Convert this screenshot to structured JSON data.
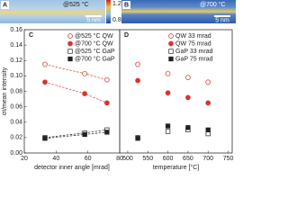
{
  "images": [
    {
      "label": "A",
      "temperature": "@525 °C",
      "scale": "5 nm"
    },
    {
      "label": "B",
      "temperature": "@700 °C",
      "scale": "5 nm"
    }
  ],
  "colorbar": {
    "top": "1.2",
    "bottom": "0.8"
  },
  "chart_data": [
    {
      "type": "scatter",
      "panel_label": "C",
      "x_label": "detector inner angle [mrad]",
      "y_label": "σI/mean intensity",
      "xlim": [
        20,
        80
      ],
      "xticks": [
        20,
        40,
        60,
        80
      ],
      "ylim": [
        0,
        0.16
      ],
      "yticks": [
        {
          "value": 0,
          "label": "0.00"
        },
        {
          "value": 0.02,
          "label": "0.02"
        },
        {
          "value": 0.04,
          "label": "0.04"
        },
        {
          "value": 0.06,
          "label": "0.06"
        },
        {
          "value": 0.08,
          "label": "0.08"
        },
        {
          "value": 0.1,
          "label": "0.10"
        },
        {
          "value": 0.12,
          "label": "0.12"
        },
        {
          "value": 0.14,
          "label": "0.14"
        },
        {
          "value": 0.16,
          "label": "0.16"
        }
      ],
      "fit_lines": true,
      "series": [
        {
          "name": "@525 °C QW",
          "color": "#d9342b",
          "marker": "circle",
          "filled": false,
          "x": [
            33,
            58,
            72
          ],
          "values": [
            0.115,
            0.103,
            0.095
          ]
        },
        {
          "name": "@700 °C QW",
          "color": "#d9342b",
          "marker": "circle",
          "filled": true,
          "x": [
            33,
            58,
            72
          ],
          "values": [
            0.092,
            0.077,
            0.065
          ]
        },
        {
          "name": "@525 °C GaP",
          "color": "#222222",
          "marker": "square",
          "filled": false,
          "x": [
            33,
            58,
            72
          ],
          "values": [
            0.02,
            0.026,
            0.03
          ]
        },
        {
          "name": "@700 °C GaP",
          "color": "#222222",
          "marker": "square",
          "filled": true,
          "x": [
            33,
            58,
            72
          ],
          "values": [
            0.019,
            0.024,
            0.027
          ]
        }
      ]
    },
    {
      "type": "scatter",
      "panel_label": "D",
      "x_label": "temperature [°C]",
      "xlim": [
        480,
        760
      ],
      "xticks": [
        500,
        550,
        600,
        650,
        700,
        750
      ],
      "ylim": [
        0,
        0.16
      ],
      "fit_lines": false,
      "series": [
        {
          "name": "QW 33 mrad",
          "color": "#d9342b",
          "marker": "circle",
          "filled": false,
          "x": [
            525,
            600,
            650,
            700
          ],
          "values": [
            0.115,
            0.103,
            0.098,
            0.092
          ]
        },
        {
          "name": "QW 75 mrad",
          "color": "#d9342b",
          "marker": "circle",
          "filled": true,
          "x": [
            525,
            600,
            650,
            700
          ],
          "values": [
            0.094,
            0.078,
            0.072,
            0.065
          ]
        },
        {
          "name": "GaP 33 mrad",
          "color": "#222222",
          "marker": "square",
          "filled": false,
          "x": [
            525,
            600,
            650,
            700
          ],
          "values": [
            0.02,
            0.028,
            0.03,
            0.025
          ]
        },
        {
          "name": "GaP 75 mrad",
          "color": "#222222",
          "marker": "square",
          "filled": true,
          "x": [
            525,
            600,
            650,
            700
          ],
          "values": [
            0.019,
            0.035,
            0.033,
            0.03
          ]
        }
      ]
    }
  ]
}
